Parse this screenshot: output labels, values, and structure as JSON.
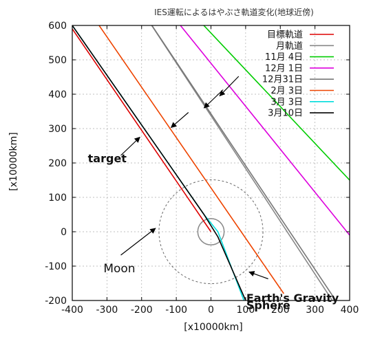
{
  "chart_data": {
    "type": "line",
    "title": "IES運転によるはやぶさ軌道変化(地球近傍)",
    "xlabel": "[x10000km]",
    "ylabel": "[x10000km]",
    "xlim": [
      -400,
      400
    ],
    "ylim": [
      -200,
      600
    ],
    "xticks": [
      -400,
      -300,
      -200,
      -100,
      0,
      100,
      200,
      300,
      400
    ],
    "yticks": [
      -200,
      -100,
      0,
      100,
      200,
      300,
      400,
      500,
      600
    ],
    "grid": "dashed",
    "legend_position": "top-right",
    "series": [
      {
        "name": "目標軌道",
        "color": "#dd0000",
        "points": [
          [
            -400,
            590
          ],
          [
            0,
            0
          ]
        ]
      },
      {
        "name": "月軌道",
        "color": "#888888",
        "points": [
          [
            -210,
            660
          ],
          [
            350,
            -200
          ]
        ]
      },
      {
        "name": "11月 4日",
        "color": "#00cc00",
        "points": [
          [
            -30,
            610
          ],
          [
            400,
            150
          ]
        ]
      },
      {
        "name": "12月 1日",
        "color": "#dd00dd",
        "points": [
          [
            -120,
            640
          ],
          [
            400,
            -10
          ]
        ]
      },
      {
        "name": "12月31日",
        "color": "#777777",
        "points": [
          [
            -210,
            660
          ],
          [
            360,
            -200
          ]
        ]
      },
      {
        "name": "2月 3日",
        "color": "#ee4400",
        "points": [
          [
            -350,
            640
          ],
          [
            210,
            -180
          ]
        ]
      },
      {
        "name": "3月 3日",
        "color": "#00dddd",
        "points": [
          [
            -400,
            600
          ],
          [
            -20,
            50
          ],
          [
            20,
            0
          ],
          [
            95,
            -200
          ]
        ]
      },
      {
        "name": "3月10日",
        "color": "#000000",
        "points": [
          [
            -400,
            600
          ],
          [
            -20,
            50
          ],
          [
            20,
            -15
          ],
          [
            100,
            -200
          ]
        ]
      }
    ],
    "circles": [
      {
        "label": "Moon",
        "center": [
          0,
          0
        ],
        "radius": 38,
        "color": "#888888",
        "style": "solid"
      },
      {
        "label": "Earth's Gravity Sphere",
        "center": [
          0,
          0
        ],
        "radius": 150,
        "color": "#666666",
        "style": "dashed"
      }
    ],
    "annotations": [
      {
        "text": "target",
        "at": [
          -355,
          202
        ],
        "arrow_from": [
          -260,
          222
        ],
        "arrow_to": [
          -205,
          275
        ]
      },
      {
        "text": "Moon",
        "at": [
          -310,
          -118
        ],
        "arrow_from": [
          -260,
          -68
        ],
        "arrow_to": [
          -160,
          10
        ]
      },
      {
        "text": "Earth's Gravity",
        "at": [
          102,
          -204
        ],
        "arrow_from": [
          165,
          -137
        ],
        "arrow_to": [
          110,
          -117
        ]
      },
      {
        "text": "Sphere",
        "at": [
          102,
          -225
        ]
      }
    ],
    "extra_arrows": [
      {
        "from": [
          80,
          452
        ],
        "to": [
          25,
          395
        ]
      },
      {
        "from": [
          35,
          413
        ],
        "to": [
          -20,
          360
        ]
      },
      {
        "from": [
          -65,
          347
        ],
        "to": [
          -115,
          303
        ]
      }
    ]
  }
}
